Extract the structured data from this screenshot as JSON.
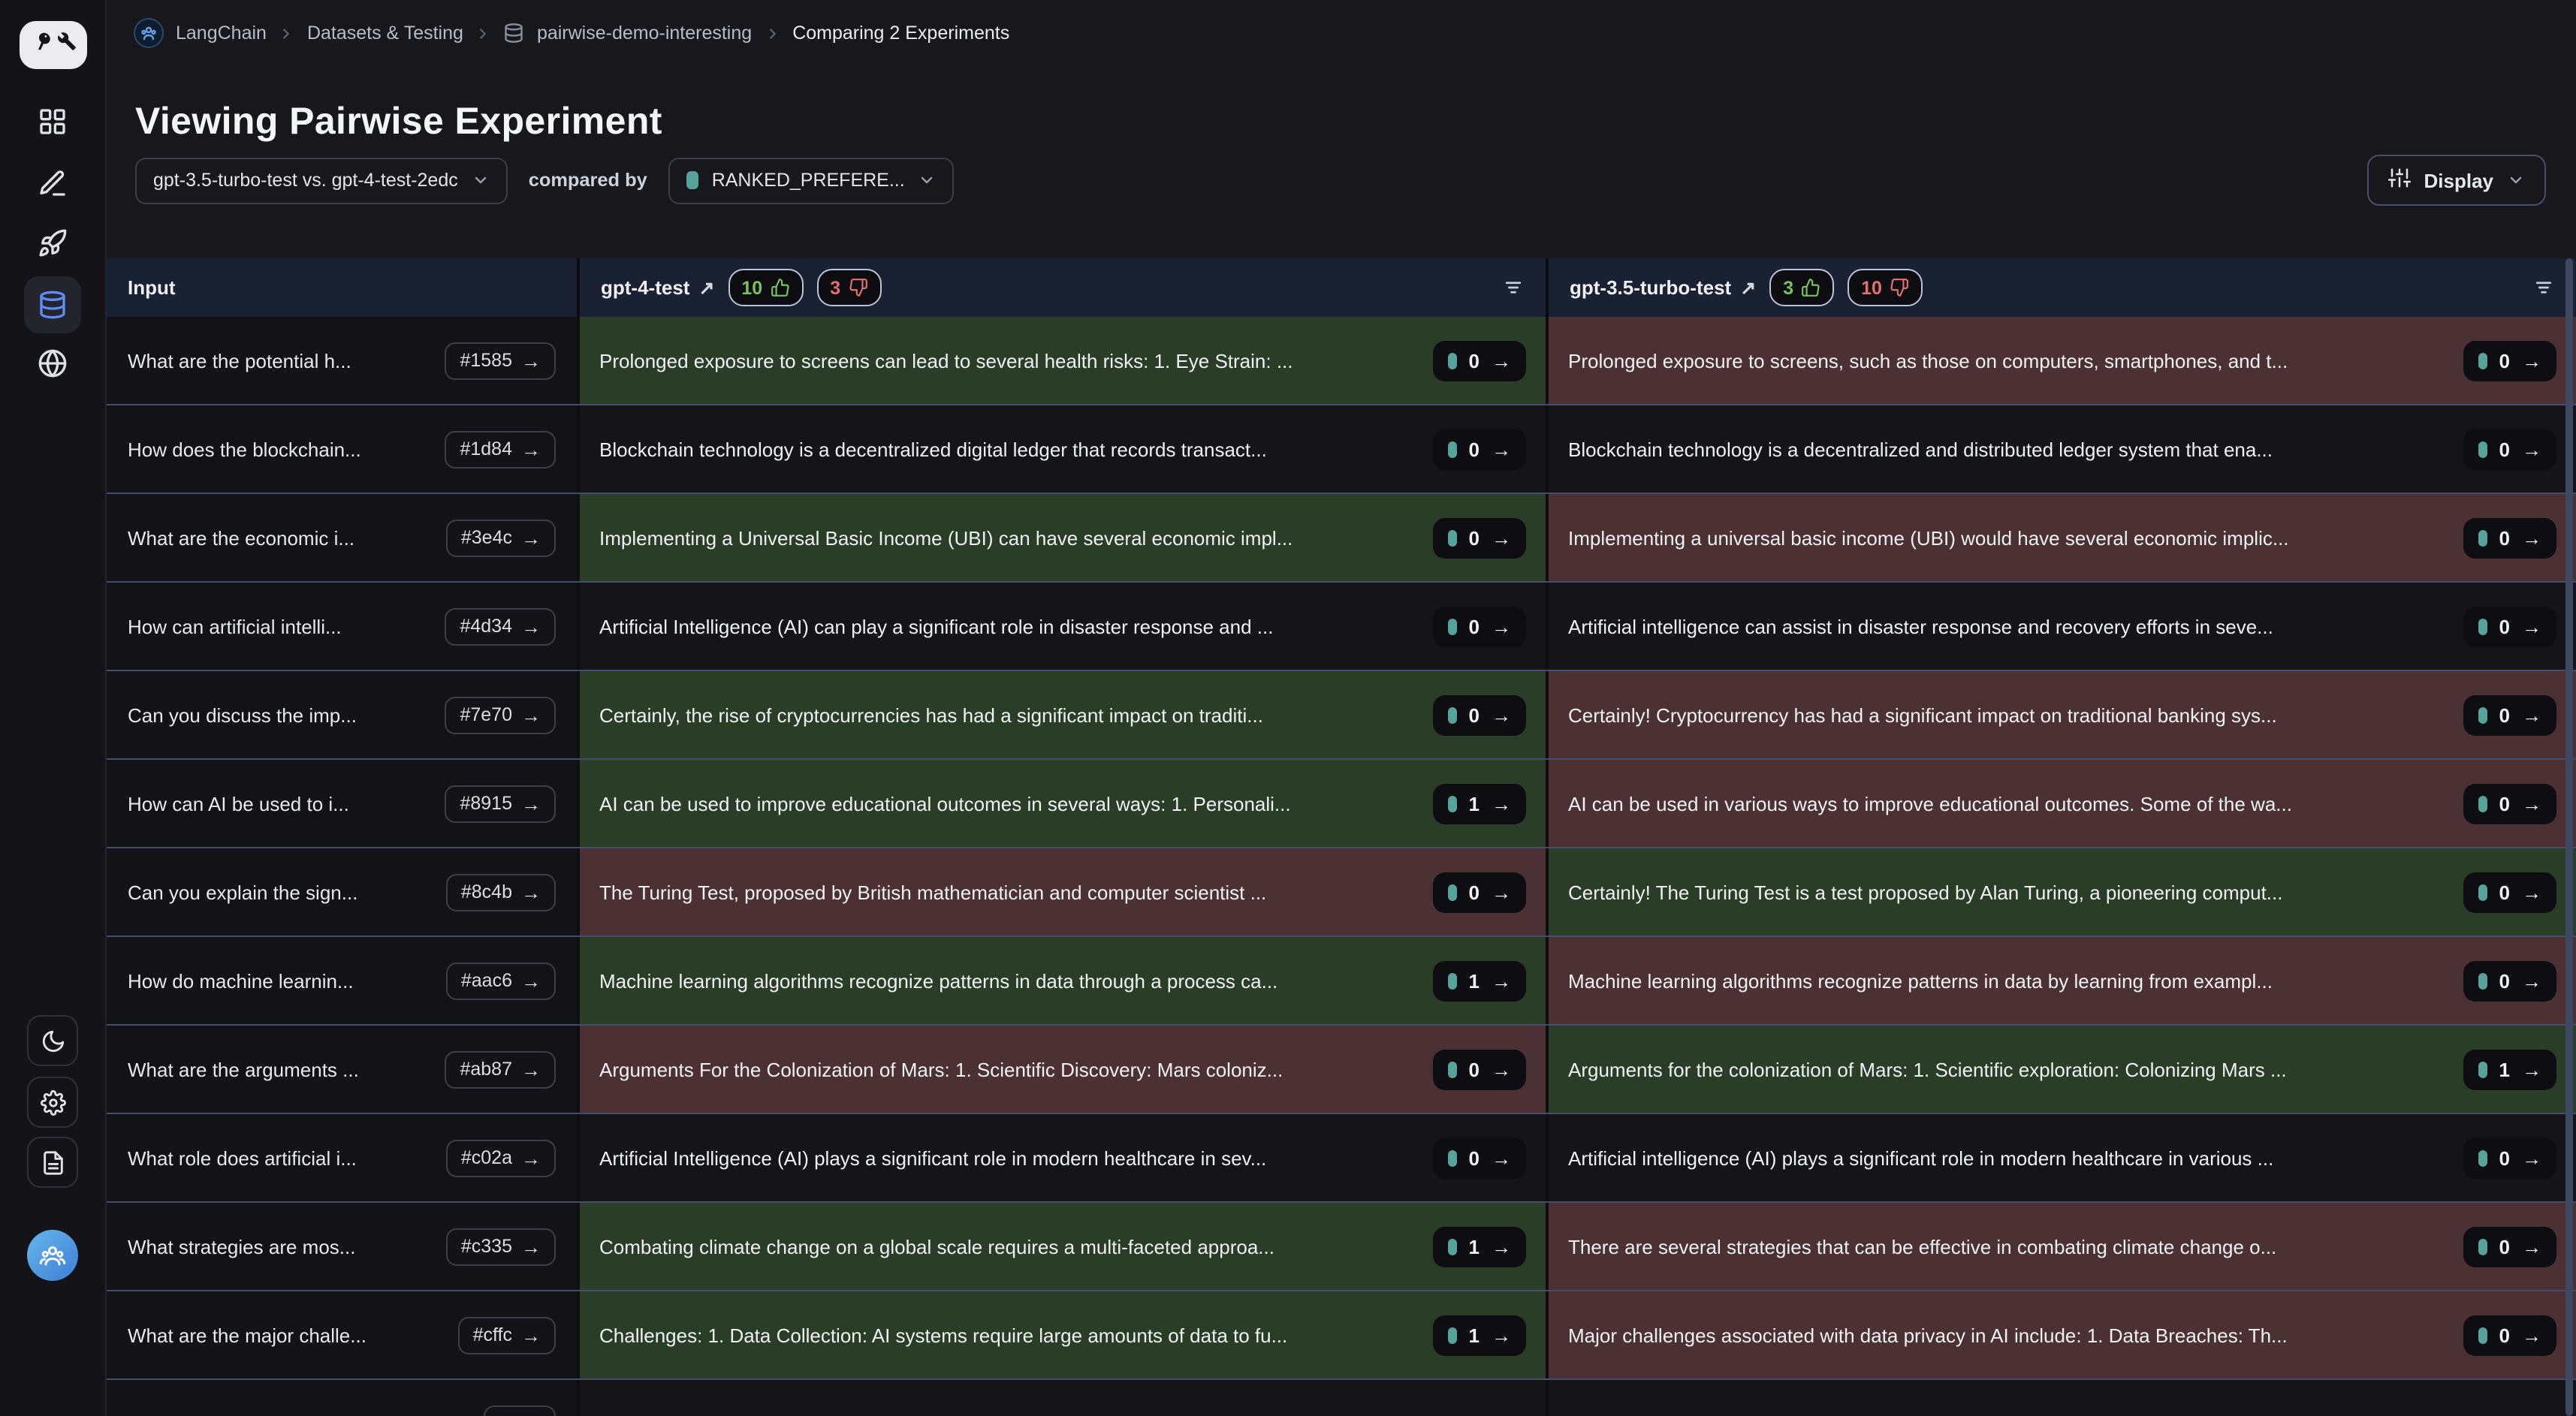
{
  "breadcrumb": {
    "org": "LangChain",
    "section": "Datasets & Testing",
    "dataset": "pairwise-demo-interesting",
    "current": "Comparing 2 Experiments"
  },
  "page_title": "Viewing Pairwise Experiment",
  "controls": {
    "experiment_select": "gpt-3.5-turbo-test vs. gpt-4-test-2edc",
    "compared_by_label": "compared by",
    "feedback_select": "RANKED_PREFERE...",
    "display_button": "Display"
  },
  "ui": {
    "arrow": "→",
    "external": "↗"
  },
  "colors": {
    "accent_blue": "#5d8df5",
    "teal": "#57a39b",
    "green": "#78c35b",
    "red": "#e4716f",
    "win_bg": "#2a3d26",
    "loss_bg": "#4b3133",
    "header_bg": "#1a2132",
    "row_border": "#44506b"
  },
  "table": {
    "input_header": "Input",
    "experiments": [
      {
        "name": "gpt-4-test",
        "thumbs_up": "10",
        "thumbs_down": "3"
      },
      {
        "name": "gpt-3.5-turbo-test",
        "thumbs_up": "3",
        "thumbs_down": "10"
      }
    ],
    "rows": [
      {
        "input": "What are the potential h...",
        "id": "#1585",
        "a": {
          "text": "Prolonged exposure to screens can lead to several health risks: 1. Eye Strain: ...",
          "state": "win",
          "count": "0"
        },
        "b": {
          "text": "Prolonged exposure to screens, such as those on computers, smartphones, and t...",
          "state": "loss",
          "count": "0"
        }
      },
      {
        "input": "How does the blockchain...",
        "id": "#1d84",
        "a": {
          "text": "Blockchain technology is a decentralized digital ledger that records transact...",
          "state": "neutral",
          "count": "0"
        },
        "b": {
          "text": "Blockchain technology is a decentralized and distributed ledger system that ena...",
          "state": "neutral",
          "count": "0"
        }
      },
      {
        "input": "What are the economic i...",
        "id": "#3e4c",
        "a": {
          "text": "Implementing a Universal Basic Income (UBI) can have several economic impl...",
          "state": "win",
          "count": "0"
        },
        "b": {
          "text": "Implementing a universal basic income (UBI) would have several economic implic...",
          "state": "loss",
          "count": "0"
        }
      },
      {
        "input": "How can artificial intelli...",
        "id": "#4d34",
        "a": {
          "text": "Artificial Intelligence (AI) can play a significant role in disaster response and ...",
          "state": "neutral",
          "count": "0"
        },
        "b": {
          "text": "Artificial intelligence can assist in disaster response and recovery efforts in seve...",
          "state": "neutral",
          "count": "0"
        }
      },
      {
        "input": "Can you discuss the imp...",
        "id": "#7e70",
        "a": {
          "text": "Certainly, the rise of cryptocurrencies has had a significant impact on traditi...",
          "state": "win",
          "count": "0"
        },
        "b": {
          "text": "Certainly! Cryptocurrency has had a significant impact on traditional banking sys...",
          "state": "loss",
          "count": "0"
        }
      },
      {
        "input": "How can AI be used to i...",
        "id": "#8915",
        "a": {
          "text": "AI can be used to improve educational outcomes in several ways: 1. Personali...",
          "state": "win",
          "count": "1"
        },
        "b": {
          "text": "AI can be used in various ways to improve educational outcomes. Some of the wa...",
          "state": "loss",
          "count": "0"
        }
      },
      {
        "input": "Can you explain the sign...",
        "id": "#8c4b",
        "a": {
          "text": "The Turing Test, proposed by British mathematician and computer scientist ...",
          "state": "loss",
          "count": "0"
        },
        "b": {
          "text": "Certainly! The Turing Test is a test proposed by Alan Turing, a pioneering comput...",
          "state": "win",
          "count": "0"
        }
      },
      {
        "input": "How do machine learnin...",
        "id": "#aac6",
        "a": {
          "text": "Machine learning algorithms recognize patterns in data through a process ca...",
          "state": "win",
          "count": "1"
        },
        "b": {
          "text": "Machine learning algorithms recognize patterns in data by learning from exampl...",
          "state": "loss",
          "count": "0"
        }
      },
      {
        "input": "What are the arguments ...",
        "id": "#ab87",
        "a": {
          "text": "Arguments For the Colonization of Mars: 1. Scientific Discovery: Mars coloniz...",
          "state": "loss",
          "count": "0"
        },
        "b": {
          "text": "Arguments for the colonization of Mars: 1. Scientific exploration: Colonizing Mars ...",
          "state": "win",
          "count": "1"
        }
      },
      {
        "input": "What role does artificial i...",
        "id": "#c02a",
        "a": {
          "text": "Artificial Intelligence (AI) plays a significant role in modern healthcare in sev...",
          "state": "neutral",
          "count": "0"
        },
        "b": {
          "text": "Artificial intelligence (AI) plays a significant role in modern healthcare in various ...",
          "state": "neutral",
          "count": "0"
        }
      },
      {
        "input": "What strategies are mos...",
        "id": "#c335",
        "a": {
          "text": "Combating climate change on a global scale requires a multi-faceted approa...",
          "state": "win",
          "count": "1"
        },
        "b": {
          "text": "There are several strategies that can be effective in combating climate change o...",
          "state": "loss",
          "count": "0"
        }
      },
      {
        "input": "What are the major challe...",
        "id": "#cffc",
        "a": {
          "text": "Challenges: 1. Data Collection: AI systems require large amounts of data to fu...",
          "state": "win",
          "count": "1"
        },
        "b": {
          "text": "Major challenges associated with data privacy in AI include: 1. Data Breaches: Th...",
          "state": "loss",
          "count": "0"
        }
      },
      {
        "input": "",
        "id": "",
        "a": {
          "text": "",
          "state": "neutral",
          "count": ""
        },
        "b": {
          "text": "",
          "state": "neutral",
          "count": ""
        }
      }
    ]
  }
}
